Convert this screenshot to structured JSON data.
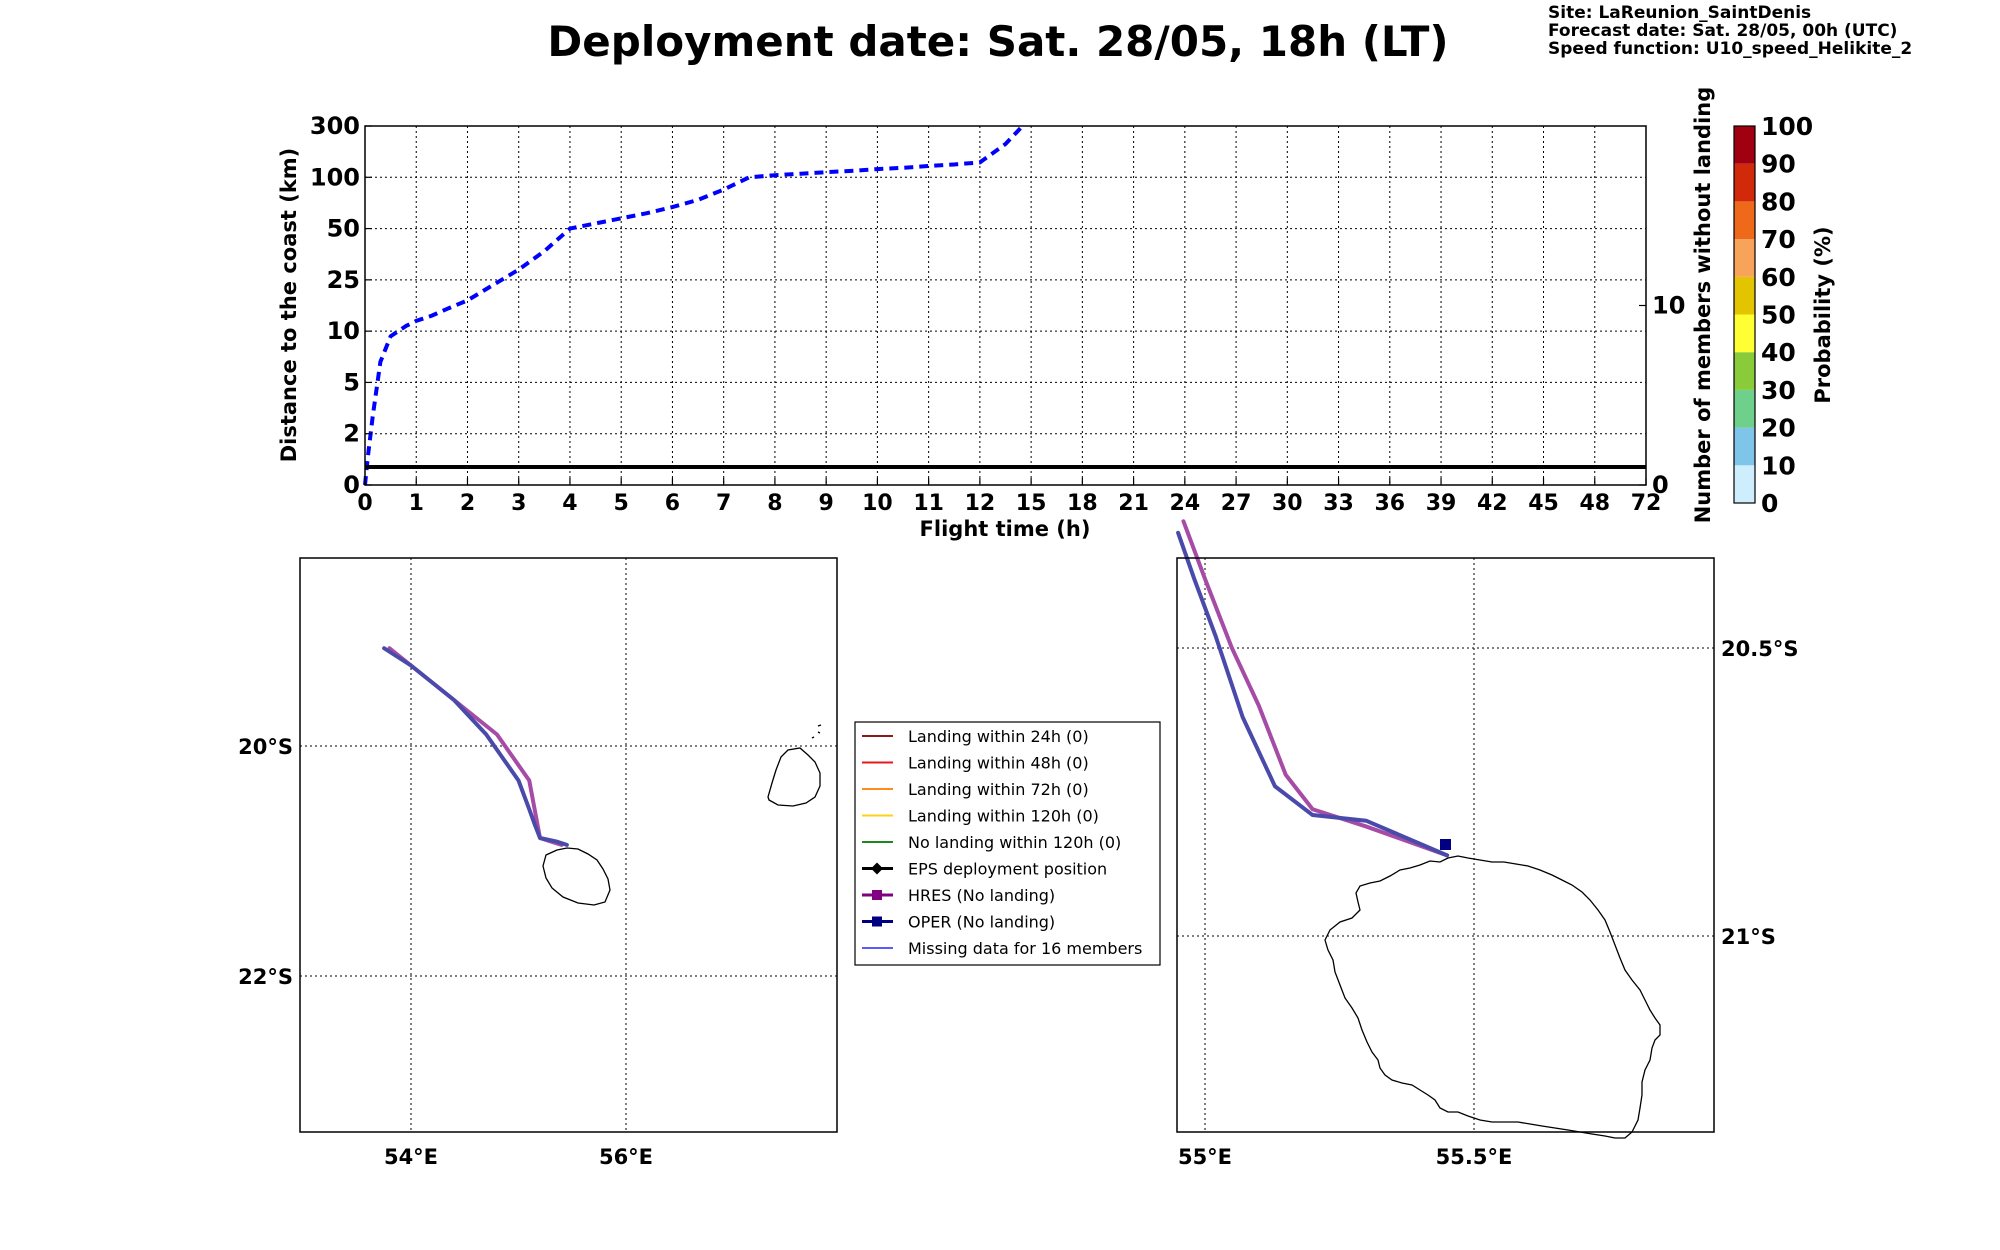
{
  "header": {
    "title": "Deployment date: Sat. 28/05, 18h (LT)",
    "site": "Site: LaReunion_SaintDenis",
    "forecast_date": "Forecast date: Sat. 28/05, 00h (UTC)",
    "speed_function": "Speed function: U10_speed_Helikite_2"
  },
  "chart_data": [
    {
      "type": "line",
      "name": "distance-plot",
      "xlabel": "Flight time (h)",
      "ylabel": "Distance to the coast (km)",
      "y2label": "Number of members without landing",
      "x_ticks": [
        "0",
        "1",
        "2",
        "3",
        "4",
        "5",
        "6",
        "7",
        "8",
        "9",
        "10",
        "11",
        "12",
        "15",
        "18",
        "21",
        "24",
        "27",
        "30",
        "33",
        "36",
        "39",
        "42",
        "45",
        "48",
        "72"
      ],
      "y_ticks": [
        "0",
        "2",
        "5",
        "10",
        "25",
        "50",
        "100",
        "300"
      ],
      "y2_ticks": [
        "0",
        "10"
      ],
      "y2_range": [
        0,
        20
      ],
      "grid": true,
      "series": [
        {
          "style": "dashed",
          "color": "#0000ff",
          "x": [
            0,
            0.05,
            0.15,
            0.3,
            0.5,
            0.8,
            1.0,
            1.3,
            1.6,
            2.0,
            2.5,
            3.0,
            3.5,
            4.0,
            4.5,
            5.0,
            5.5,
            6.0,
            6.5,
            7.0,
            7.5,
            8.0,
            8.5,
            9.0,
            9.5,
            10.0,
            10.5,
            11.0,
            11.5,
            12.0,
            13.5,
            14.5
          ],
          "y": [
            0,
            1.0,
            3.0,
            7.0,
            9.5,
            11.5,
            13.0,
            14.5,
            16.5,
            19.0,
            23.5,
            30.0,
            39.0,
            50.0,
            55.0,
            60.0,
            65.0,
            71.0,
            78.0,
            88.0,
            100.0,
            108.0,
            114.0,
            120.0,
            125.0,
            132.0,
            137.0,
            144.0,
            150.0,
            158.0,
            230.0,
            300.0
          ]
        },
        {
          "style": "solid",
          "color": "#000000",
          "axis": "right",
          "x": [
            0,
            72
          ],
          "y": [
            1,
            1
          ]
        }
      ]
    },
    {
      "type": "map",
      "name": "overview-map",
      "x_ticks": [
        "54°E",
        "56°E"
      ],
      "y_ticks": [
        "20°S",
        "22°S"
      ],
      "tracks": [
        {
          "label": "HRES (No landing)",
          "color": "#a64ca6",
          "lon": [
            55.4,
            55.3,
            55.2,
            55.18,
            55.16,
            55.1,
            54.95,
            54.8,
            54.6,
            54.4,
            54.2,
            54.0,
            53.8
          ],
          "lat": [
            -20.86,
            -20.83,
            -20.8,
            -20.7,
            -20.6,
            -20.3,
            -20.1,
            -19.9,
            -19.75,
            -19.6,
            -19.45,
            -19.3,
            -19.15
          ]
        },
        {
          "label": "OPER (No landing)",
          "color": "#4a4aaa",
          "lon": [
            55.45,
            55.35,
            55.2,
            55.15,
            55.1,
            55.0,
            54.85,
            54.7,
            54.55,
            54.4,
            54.2,
            54.0,
            53.75
          ],
          "lat": [
            -20.86,
            -20.83,
            -20.8,
            -20.68,
            -20.55,
            -20.3,
            -20.1,
            -19.9,
            -19.75,
            -19.6,
            -19.45,
            -19.3,
            -19.15
          ]
        }
      ]
    },
    {
      "type": "map",
      "name": "zoom-map",
      "x_ticks": [
        "55°E",
        "55.5°E"
      ],
      "y_ticks": [
        "20.5°S",
        "21°S"
      ],
      "tracks": [
        {
          "label": "HRES (No landing)",
          "color": "#a64ca6",
          "lon": [
            55.45,
            55.3,
            55.2,
            55.15,
            55.1,
            55.05,
            55.0,
            54.96
          ],
          "lat": [
            -20.86,
            -20.81,
            -20.78,
            -20.72,
            -20.6,
            -20.5,
            -20.38,
            -20.28
          ]
        },
        {
          "label": "OPER (No landing)",
          "color": "#4a4aaa",
          "lon": [
            55.45,
            55.3,
            55.2,
            55.13,
            55.07,
            55.02,
            54.98,
            54.95
          ],
          "lat": [
            -20.86,
            -20.8,
            -20.79,
            -20.74,
            -20.62,
            -20.48,
            -20.38,
            -20.3
          ]
        }
      ]
    }
  ],
  "legend": {
    "items": [
      {
        "label": "Landing within 24h (0)",
        "color": "#8b1a1a",
        "marker": "none"
      },
      {
        "label": "Landing within 48h (0)",
        "color": "#e41a1c",
        "marker": "none"
      },
      {
        "label": "Landing within 72h (0)",
        "color": "#ff8c1a",
        "marker": "none"
      },
      {
        "label": "Landing within 120h (0)",
        "color": "#ffd21a",
        "marker": "none"
      },
      {
        "label": "No landing within 120h (0)",
        "color": "#1a8a1a",
        "marker": "none"
      },
      {
        "label": "EPS deployment position",
        "color": "#000000",
        "marker": "diamond"
      },
      {
        "label": "HRES (No landing)",
        "color": "#800080",
        "marker": "square"
      },
      {
        "label": "OPER (No landing)",
        "color": "#000080",
        "marker": "square"
      },
      {
        "label": "Missing data for 16 members",
        "color": "#5a5aff",
        "marker": "none"
      }
    ]
  },
  "colorbar": {
    "label": "Probability (%)",
    "ticks": [
      "0",
      "10",
      "20",
      "30",
      "40",
      "50",
      "60",
      "70",
      "80",
      "90",
      "100"
    ],
    "colors": [
      "#cfeefd",
      "#7fc5ea",
      "#6fd08c",
      "#8acb3a",
      "#ffff33",
      "#e2c400",
      "#f8a35a",
      "#ee6a1a",
      "#d12a0a",
      "#a00010"
    ]
  }
}
